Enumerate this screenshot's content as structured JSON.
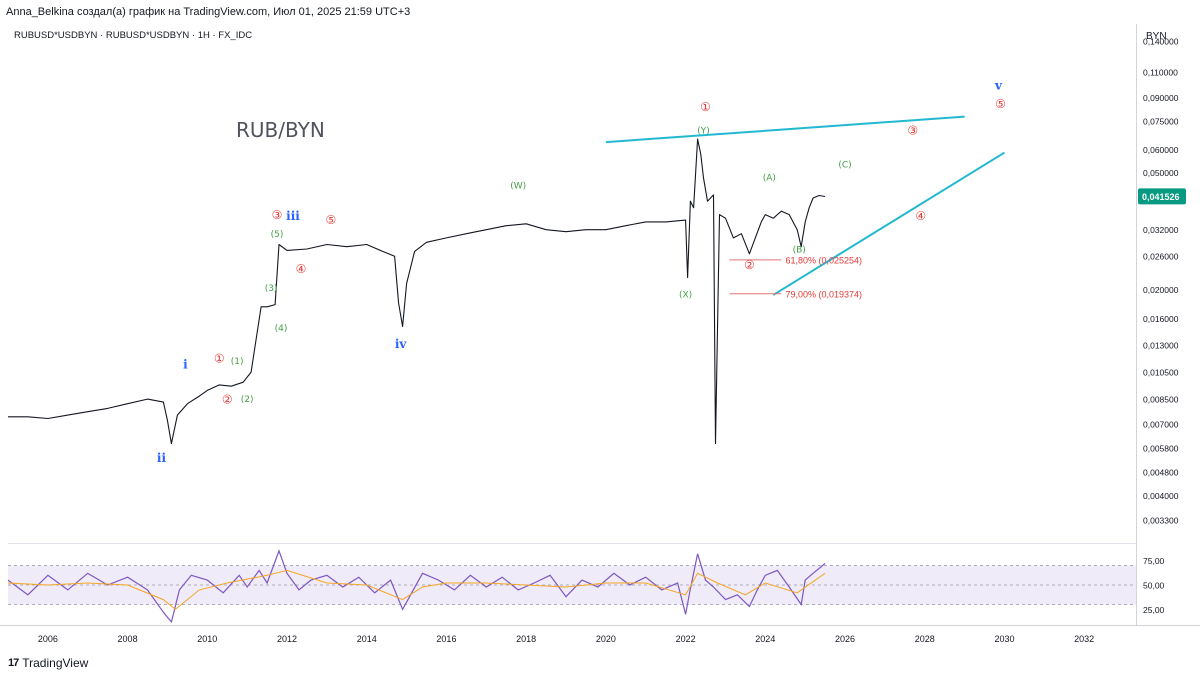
{
  "header": {
    "attribution": "Anna_Belkina создал(а) график на TradingView.com, Июл 01, 2025 21:59 UTC+3",
    "symbol_line": "RUBUSD*USDBYN · RUBUSD*USDBYN · 1H · FX_IDC",
    "chart_title": "RUB/BYN",
    "currency": "BYN"
  },
  "footer": {
    "logo_mark": "17",
    "brand": "TradingView"
  },
  "chart_data": [
    {
      "type": "line",
      "title": "RUB/BYN",
      "scale": "log",
      "x_range": [
        2005,
        2033.3
      ],
      "ylim": [
        0.0028,
        0.16
      ],
      "y_ticks": [
        "0,140000",
        "0,110000",
        "0,090000",
        "0,075000",
        "0,060000",
        "0,050000",
        "0,041526",
        "0,032000",
        "0,026000",
        "0,020000",
        "0,016000",
        "0,013000",
        "0,010500",
        "0,008500",
        "0,007000",
        "0,005800",
        "0,004800",
        "0,004000",
        "0,003300"
      ],
      "y_tick_values": [
        0.14,
        0.11,
        0.09,
        0.075,
        0.06,
        0.05,
        0.041526,
        0.032,
        0.026,
        0.02,
        0.016,
        0.013,
        0.0105,
        0.0085,
        0.007,
        0.0058,
        0.0048,
        0.004,
        0.0033
      ],
      "current_price": "0,041526",
      "x_tick_labels": [
        "2006",
        "2008",
        "2010",
        "2012",
        "2014",
        "2016",
        "2018",
        "2020",
        "2022",
        "2024",
        "2026",
        "2028",
        "2030",
        "2032"
      ],
      "x_tick_values": [
        2006,
        2008,
        2010,
        2012,
        2014,
        2016,
        2018,
        2020,
        2022,
        2024,
        2026,
        2028,
        2030,
        2032
      ],
      "series": [
        {
          "x": [
            2005.0,
            2005.5,
            2006.0,
            2006.5,
            2007.0,
            2007.5,
            2008.0,
            2008.5,
            2008.9,
            2009.0,
            2009.1,
            2009.25,
            2009.5,
            2009.8,
            2010.0,
            2010.3,
            2010.6,
            2010.9,
            2011.1,
            2011.35,
            2011.5,
            2011.7,
            2011.8,
            2012.0,
            2012.5,
            2013.0,
            2013.5,
            2014.0,
            2014.4,
            2014.7,
            2014.8,
            2014.9,
            2015.0,
            2015.2,
            2015.5,
            2016.0,
            2016.5,
            2017.0,
            2017.5,
            2018.0,
            2018.5,
            2019.0,
            2019.5,
            2020.0,
            2020.5,
            2021.0,
            2021.5,
            2022.0,
            2022.05,
            2022.12,
            2022.2,
            2022.3,
            2022.38,
            2022.45,
            2022.55,
            2022.7,
            2022.75,
            2022.85,
            2023.0,
            2023.2,
            2023.4,
            2023.6,
            2023.75,
            2023.9,
            2024.0,
            2024.2,
            2024.4,
            2024.6,
            2024.8,
            2024.9,
            2025.0,
            2025.1,
            2025.2,
            2025.35,
            2025.5
          ],
          "y": [
            0.0074,
            0.0074,
            0.0073,
            0.0075,
            0.0077,
            0.0079,
            0.0082,
            0.0085,
            0.0083,
            0.0072,
            0.006,
            0.0075,
            0.0082,
            0.0087,
            0.0091,
            0.0095,
            0.0094,
            0.0097,
            0.0105,
            0.0175,
            0.0175,
            0.0178,
            0.0285,
            0.0272,
            0.0275,
            0.0285,
            0.028,
            0.0285,
            0.027,
            0.026,
            0.018,
            0.015,
            0.021,
            0.027,
            0.029,
            0.03,
            0.031,
            0.032,
            0.033,
            0.0335,
            0.032,
            0.0315,
            0.032,
            0.032,
            0.033,
            0.034,
            0.034,
            0.0345,
            0.022,
            0.04,
            0.038,
            0.065,
            0.058,
            0.048,
            0.04,
            0.042,
            0.006,
            0.036,
            0.035,
            0.03,
            0.031,
            0.0265,
            0.03,
            0.034,
            0.036,
            0.035,
            0.037,
            0.036,
            0.032,
            0.028,
            0.034,
            0.038,
            0.041,
            0.0418,
            0.0415
          ]
        }
      ],
      "annotations": [
        {
          "label": "i",
          "x": 2009.45,
          "y": 0.0108,
          "color": "#2962ff"
        },
        {
          "label": "ii",
          "x": 2008.85,
          "y": 0.0052,
          "color": "#2962ff"
        },
        {
          "label": "iii",
          "x": 2012.15,
          "y": 0.0345,
          "color": "#2962ff"
        },
        {
          "label": "iv",
          "x": 2014.85,
          "y": 0.0127,
          "color": "#2962ff"
        },
        {
          "label": "v",
          "x": 2029.85,
          "y": 0.096,
          "color": "#2962ff"
        },
        {
          "label": "①",
          "x": 2010.3,
          "y": 0.0113,
          "color": "#e53935"
        },
        {
          "label": "②",
          "x": 2010.5,
          "y": 0.0082,
          "color": "#e53935"
        },
        {
          "label": "③",
          "x": 2011.75,
          "y": 0.0348,
          "color": "#e53935"
        },
        {
          "label": "④",
          "x": 2012.35,
          "y": 0.0228,
          "color": "#e53935"
        },
        {
          "label": "⑤",
          "x": 2013.1,
          "y": 0.0335,
          "color": "#e53935"
        },
        {
          "label": "①",
          "x": 2022.5,
          "y": 0.081,
          "color": "#e53935"
        },
        {
          "label": "②",
          "x": 2023.6,
          "y": 0.0235,
          "color": "#e53935"
        },
        {
          "label": "③",
          "x": 2027.7,
          "y": 0.0675,
          "color": "#e53935"
        },
        {
          "label": "④",
          "x": 2027.9,
          "y": 0.0345,
          "color": "#e53935"
        },
        {
          "label": "⑤",
          "x": 2029.9,
          "y": 0.083,
          "color": "#e53935"
        },
        {
          "label": "(1)",
          "x": 2010.75,
          "y": 0.0112,
          "color": "#43a047"
        },
        {
          "label": "(2)",
          "x": 2011.0,
          "y": 0.0083,
          "color": "#43a047"
        },
        {
          "label": "(3)",
          "x": 2011.6,
          "y": 0.0198,
          "color": "#43a047"
        },
        {
          "label": "(4)",
          "x": 2011.85,
          "y": 0.0145,
          "color": "#43a047"
        },
        {
          "label": "(5)",
          "x": 2011.75,
          "y": 0.0302,
          "color": "#43a047"
        },
        {
          "label": "(W)",
          "x": 2017.8,
          "y": 0.0442,
          "color": "#43a047"
        },
        {
          "label": "(X)",
          "x": 2022.0,
          "y": 0.0188,
          "color": "#43a047"
        },
        {
          "label": "(Y)",
          "x": 2022.45,
          "y": 0.068,
          "color": "#43a047"
        },
        {
          "label": "(A)",
          "x": 2024.1,
          "y": 0.047,
          "color": "#43a047"
        },
        {
          "label": "(B)",
          "x": 2024.85,
          "y": 0.0268,
          "color": "#43a047"
        },
        {
          "label": "(C)",
          "x": 2026.0,
          "y": 0.052,
          "color": "#43a047"
        }
      ],
      "fib_levels": [
        {
          "label": "61,80% (0,025254)",
          "value": 0.025254,
          "x_start": 2023.1,
          "x_end": 2024.4
        },
        {
          "label": "79,00% (0,019374)",
          "value": 0.019374,
          "x_start": 2023.1,
          "x_end": 2024.4
        }
      ],
      "trendlines": [
        {
          "x1": 2020.0,
          "y1": 0.0635,
          "x2": 2029.0,
          "y2": 0.0775,
          "color": "#22b8cf"
        },
        {
          "x1": 2024.2,
          "y1": 0.0192,
          "x2": 2030.0,
          "y2": 0.0585,
          "color": "#22b8cf"
        }
      ]
    },
    {
      "type": "line",
      "title": "",
      "ylim": [
        10,
        90
      ],
      "y_ticks": [
        "75,00",
        "50,00",
        "25,00"
      ],
      "y_tick_values": [
        75,
        50,
        25
      ],
      "band": [
        30,
        70
      ],
      "series": [
        {
          "color": "#7e57c2",
          "x": [
            2005.0,
            2005.5,
            2006.0,
            2006.5,
            2007.0,
            2007.5,
            2008.0,
            2008.5,
            2008.9,
            2009.1,
            2009.3,
            2009.6,
            2010.0,
            2010.4,
            2010.8,
            2011.0,
            2011.3,
            2011.5,
            2011.8,
            2012.0,
            2012.3,
            2012.6,
            2013.0,
            2013.4,
            2013.8,
            2014.2,
            2014.6,
            2014.9,
            2015.1,
            2015.4,
            2015.8,
            2016.2,
            2016.6,
            2017.0,
            2017.4,
            2017.8,
            2018.2,
            2018.6,
            2019.0,
            2019.4,
            2019.8,
            2020.2,
            2020.6,
            2021.0,
            2021.4,
            2021.8,
            2022.0,
            2022.1,
            2022.3,
            2022.5,
            2022.7,
            2023.0,
            2023.3,
            2023.6,
            2023.8,
            2024.0,
            2024.3,
            2024.6,
            2024.9,
            2025.0,
            2025.2,
            2025.5
          ],
          "y": [
            55,
            40,
            60,
            45,
            62,
            50,
            58,
            45,
            22,
            12,
            45,
            60,
            55,
            42,
            60,
            48,
            65,
            52,
            85,
            62,
            45,
            55,
            60,
            48,
            58,
            42,
            55,
            25,
            40,
            62,
            55,
            45,
            60,
            48,
            58,
            45,
            52,
            60,
            38,
            55,
            48,
            62,
            50,
            58,
            45,
            52,
            20,
            42,
            82,
            55,
            48,
            35,
            40,
            28,
            45,
            60,
            65,
            48,
            30,
            55,
            62,
            72
          ]
        },
        {
          "color": "#f5a623",
          "x": [
            2005.0,
            2006.0,
            2007.0,
            2008.0,
            2008.9,
            2009.2,
            2009.8,
            2010.5,
            2011.5,
            2012.0,
            2013.0,
            2014.0,
            2014.9,
            2015.4,
            2016.0,
            2017.0,
            2018.0,
            2019.0,
            2020.0,
            2021.0,
            2022.0,
            2022.3,
            2022.8,
            2023.5,
            2024.0,
            2024.8,
            2025.5
          ],
          "y": [
            52,
            50,
            52,
            50,
            35,
            25,
            45,
            52,
            60,
            65,
            52,
            50,
            35,
            48,
            52,
            52,
            50,
            48,
            52,
            52,
            40,
            62,
            52,
            40,
            52,
            42,
            62
          ]
        }
      ]
    }
  ]
}
